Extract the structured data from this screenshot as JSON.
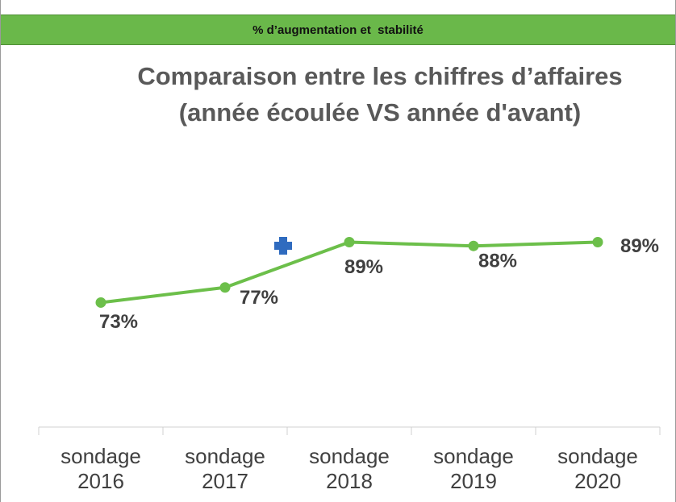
{
  "header": {
    "title": "% d’augmentation et  stabilité"
  },
  "chart_data": {
    "type": "line",
    "title": "Comparaison entre les chiffres d’affaires (année écoulée VS année d'avant)",
    "categories": [
      "sondage 2016",
      "sondage 2017",
      "sondage 2018",
      "sondage 2019",
      "sondage 2020"
    ],
    "values": [
      73,
      77,
      89,
      88,
      89
    ],
    "value_labels": [
      "73%",
      "77%",
      "89%",
      "88%",
      "89%"
    ],
    "color": "#6cbf4a",
    "ylim": [
      40,
      100
    ]
  }
}
